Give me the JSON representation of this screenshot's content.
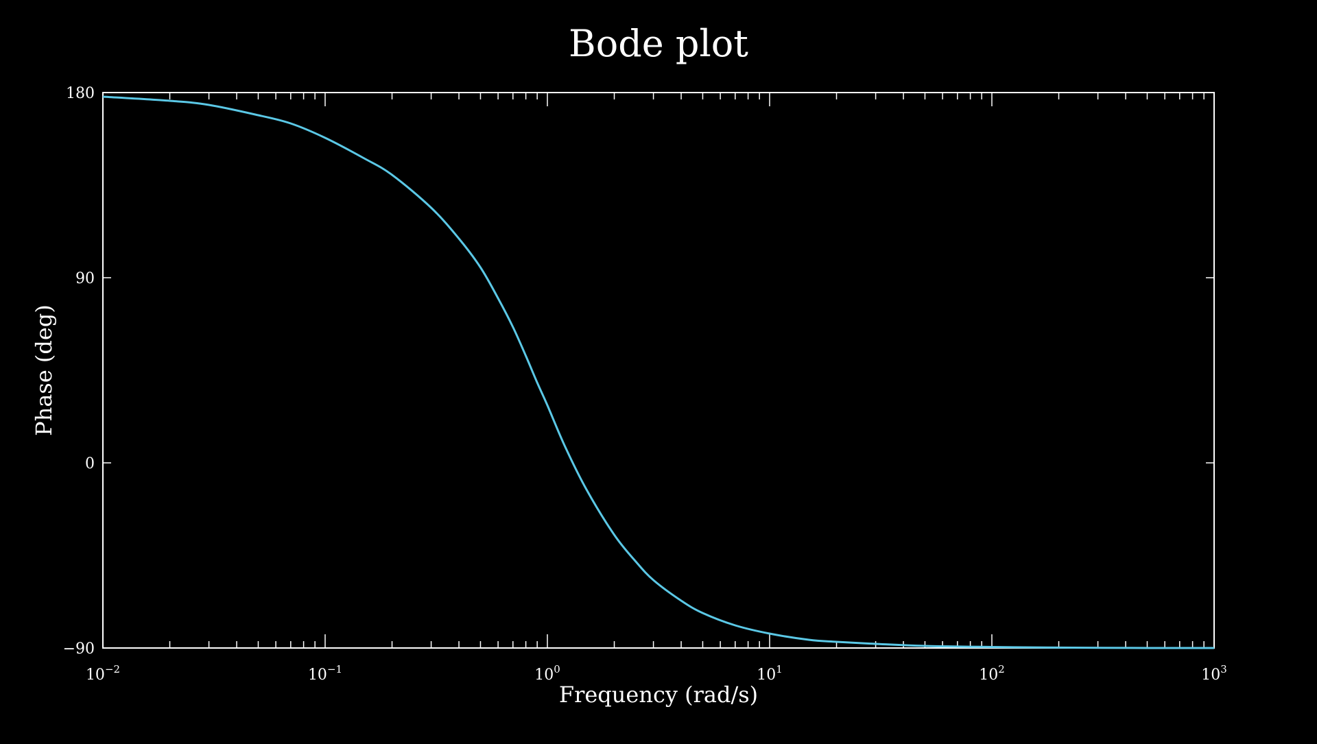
{
  "colors": {
    "background": "#000000",
    "foreground": "#ffffff",
    "series": "#5bc8e6"
  },
  "chart_data": {
    "type": "line",
    "title": "Bode plot",
    "xlabel": "Frequency (rad/s)",
    "ylabel": "Phase (deg)",
    "xscale": "log",
    "xlim": [
      0.01,
      1000
    ],
    "ylim": [
      -90,
      180
    ],
    "grid": false,
    "legend": "none",
    "x_ticks": [
      {
        "value": 0.01,
        "base": "10",
        "exp": "−2"
      },
      {
        "value": 0.1,
        "base": "10",
        "exp": "−1"
      },
      {
        "value": 1,
        "base": "10",
        "exp": "0"
      },
      {
        "value": 10,
        "base": "10",
        "exp": "1"
      },
      {
        "value": 100,
        "base": "10",
        "exp": "2"
      },
      {
        "value": 1000,
        "base": "10",
        "exp": "3"
      }
    ],
    "y_ticks": [
      {
        "value": 180,
        "label": "180"
      },
      {
        "value": 90,
        "label": "90"
      },
      {
        "value": 0,
        "label": "0"
      },
      {
        "value": -90,
        "label": "−90"
      }
    ],
    "series": [
      {
        "x": [
          0.01,
          0.02,
          0.03,
          0.05,
          0.07,
          0.1,
          0.15,
          0.2,
          0.3,
          0.4,
          0.5,
          0.6,
          0.7,
          0.8,
          0.9,
          1,
          1.2,
          1.5,
          2,
          2.5,
          3,
          4,
          5,
          7,
          10,
          15,
          20,
          30,
          50,
          100,
          200,
          500,
          1000
        ],
        "y": [
          178,
          176,
          174,
          169,
          165,
          158,
          148,
          140,
          124,
          109,
          95,
          80,
          66,
          52,
          39,
          28,
          8,
          -13,
          -35,
          -48,
          -57,
          -67,
          -73,
          -79,
          -83,
          -86,
          -87,
          -88,
          -89,
          -89.5,
          -89.8,
          -90,
          -90
        ]
      }
    ]
  }
}
